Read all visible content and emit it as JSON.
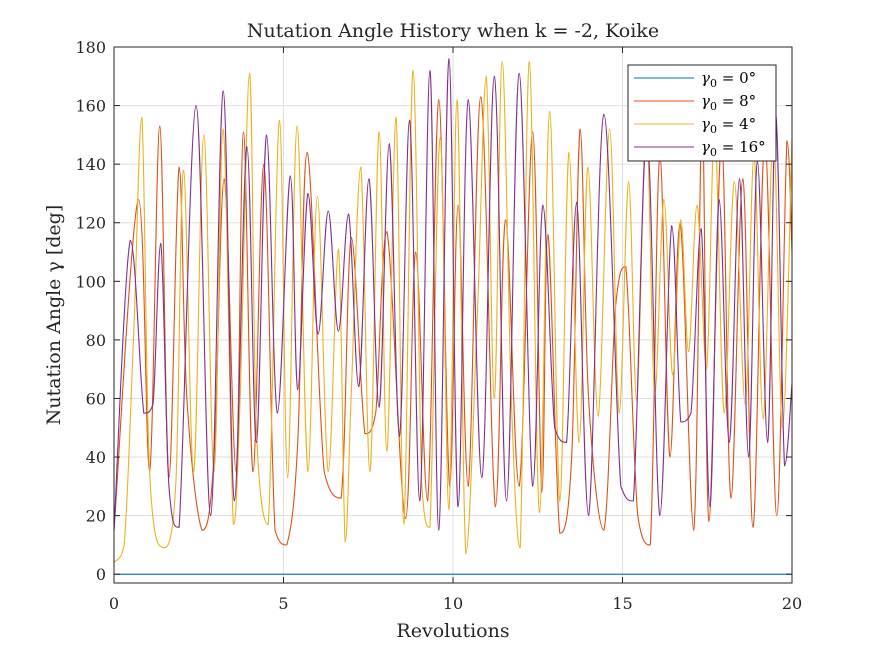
{
  "chart_data": {
    "type": "line",
    "title": "Nutation Angle History when k = -2, Koike",
    "xlabel": "Revolutions",
    "ylabel": "Nutation Angle γ [deg]",
    "xlim": [
      0,
      20
    ],
    "ylim": [
      -3,
      180
    ],
    "xticks": [
      0,
      5,
      10,
      15,
      20
    ],
    "yticks": [
      0,
      20,
      40,
      60,
      80,
      100,
      120,
      140,
      160,
      180
    ],
    "xtick_labels": [
      "0",
      "5",
      "10",
      "15",
      "20"
    ],
    "ytick_labels": [
      "0",
      "20",
      "40",
      "60",
      "80",
      "100",
      "120",
      "140",
      "160",
      "180"
    ],
    "grid": true,
    "legend_position": "top-right",
    "series": [
      {
        "name": "γ₀ = 0°",
        "legend": {
          "symbol": "γ",
          "sub": "0",
          "rest": " = 0°"
        },
        "color": "#0072BD",
        "x": [
          0,
          20
        ],
        "y": [
          0,
          0
        ]
      },
      {
        "name": "γ₀ = 8°",
        "legend": {
          "symbol": "γ",
          "sub": "0",
          "rest": " = 8°"
        },
        "color": "#D95319",
        "x": [
          0,
          0.72,
          1.05,
          1.35,
          1.62,
          1.92,
          2.15,
          2.6,
          2.95,
          3.25,
          3.6,
          3.82,
          4.1,
          4.42,
          4.75,
          5.1,
          5.42,
          5.7,
          6.2,
          6.7,
          7.0,
          7.4,
          7.72,
          8.05,
          8.6,
          8.9,
          9.25,
          9.58,
          9.9,
          10.15,
          10.45,
          10.82,
          11.25,
          11.55,
          11.95,
          12.35,
          12.62,
          12.8,
          13.15,
          13.5,
          13.75,
          14.0,
          14.45,
          14.8,
          15.1,
          15.45,
          15.82,
          16.1,
          16.4,
          16.7,
          17.1,
          17.35,
          17.55,
          17.92,
          18.2,
          18.55,
          18.85,
          19.2,
          19.55,
          19.85,
          20.0
        ],
        "y": [
          15,
          128,
          35,
          153,
          33,
          139,
          60,
          15,
          40,
          135,
          35,
          151,
          35,
          140,
          15,
          10,
          45,
          144,
          35,
          26,
          115,
          48,
          55,
          117,
          19,
          110,
          25,
          162,
          30,
          126,
          30,
          163,
          23,
          121,
          30,
          151,
          28,
          116,
          14,
          40,
          152,
          60,
          15,
          92,
          105,
          20,
          10,
          143,
          40,
          120,
          15,
          155,
          18,
          148,
          26,
          135,
          16,
          148,
          20,
          148,
          110
        ]
      },
      {
        "name": "γ₀ = 4°",
        "legend": {
          "symbol": "γ",
          "sub": "0",
          "rest": " = 4°"
        },
        "color": "#EDB120",
        "x": [
          0,
          0.3,
          0.58,
          0.82,
          1.05,
          1.45,
          1.82,
          2.05,
          2.35,
          2.65,
          2.95,
          3.22,
          3.52,
          3.72,
          4.0,
          4.2,
          4.55,
          4.88,
          5.12,
          5.4,
          5.72,
          6.0,
          6.32,
          6.62,
          6.82,
          7.0,
          7.28,
          7.55,
          7.82,
          8.05,
          8.32,
          8.55,
          8.82,
          9.08,
          9.32,
          9.62,
          9.88,
          10.12,
          10.38,
          10.72,
          10.98,
          11.22,
          11.45,
          11.72,
          11.98,
          12.25,
          12.55,
          12.85,
          13.15,
          13.42,
          13.72,
          13.98,
          14.28,
          14.62,
          14.9,
          15.18,
          15.42,
          15.7,
          15.95,
          16.22,
          16.48,
          16.72,
          16.95,
          17.2,
          17.48,
          17.72,
          18.0,
          18.3,
          18.62,
          18.88,
          19.15,
          19.45,
          19.72,
          20.0
        ],
        "y": [
          4,
          10,
          82,
          156,
          35,
          9,
          30,
          138,
          35,
          150,
          35,
          152,
          17,
          60,
          171,
          50,
          17,
          155,
          33,
          153,
          35,
          129,
          35,
          111,
          11,
          62,
          139,
          35,
          151,
          42,
          156,
          17,
          172,
          30,
          16,
          149,
          22,
          162,
          7,
          89,
          170,
          60,
          175,
          60,
          9,
          175,
          21,
          158,
          25,
          144,
          45,
          139,
          54,
          152,
          55,
          134,
          59,
          154,
          61,
          128,
          68,
          121,
          76,
          126,
          70,
          152,
          55,
          134,
          58,
          143,
          53,
          150,
          50,
          149
        ]
      },
      {
        "name": "γ₀ = 16°",
        "legend": {
          "symbol": "γ",
          "sub": "0",
          "rest": " = 16°"
        },
        "color": "#7E2F8E",
        "x": [
          0,
          0.48,
          0.88,
          1.15,
          1.38,
          1.62,
          1.92,
          2.42,
          2.85,
          3.22,
          3.55,
          3.92,
          4.2,
          4.5,
          4.82,
          5.2,
          5.42,
          5.72,
          6.02,
          6.32,
          6.62,
          6.92,
          7.22,
          7.52,
          7.82,
          8.12,
          8.42,
          8.72,
          9.02,
          9.32,
          9.58,
          9.88,
          10.15,
          10.45,
          10.85,
          11.22,
          11.58,
          11.95,
          12.35,
          12.65,
          13.0,
          13.35,
          13.65,
          14.0,
          14.45,
          14.95,
          15.32,
          15.72,
          16.1,
          16.45,
          16.72,
          17.02,
          17.32,
          17.58,
          17.85,
          18.15,
          18.45,
          18.72,
          18.98,
          19.28,
          19.52,
          19.78,
          20.0
        ],
        "y": [
          15,
          114,
          55,
          58,
          113,
          30,
          16,
          160,
          20,
          165,
          25,
          146,
          45,
          150,
          55,
          136,
          63,
          130,
          82,
          124,
          83,
          123,
          64,
          135,
          57,
          147,
          47,
          155,
          25,
          172,
          15,
          176,
          23,
          162,
          33,
          170,
          25,
          171,
          30,
          126,
          50,
          45,
          127,
          20,
          157,
          30,
          25,
          150,
          20,
          119,
          52,
          55,
          118,
          23,
          128,
          45,
          135,
          40,
          141,
          45,
          157,
          37,
          65
        ]
      }
    ]
  }
}
